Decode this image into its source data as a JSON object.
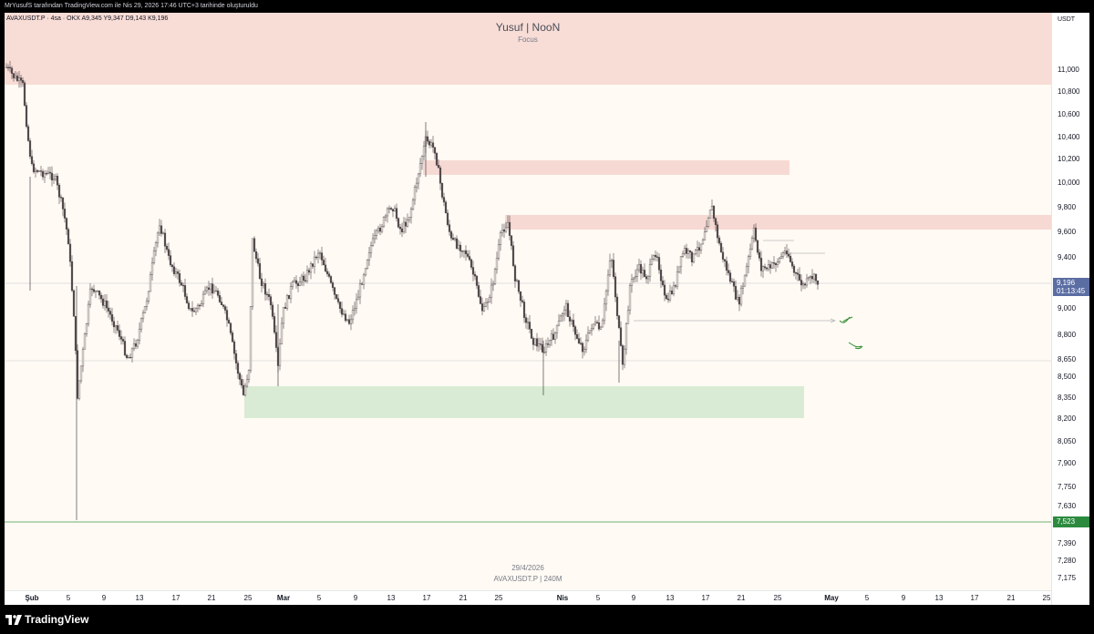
{
  "header": {
    "attribution": "MrYusufS tarafından TradingView.com ile Nis 29, 2026 17:46 UTC+3 tarihinde oluşturuldu"
  },
  "legend": {
    "symbol_line": "AVAXUSDT.P · 4sa · OKX  A9,345  Y9,347  D9,143  K9,196"
  },
  "watermark": {
    "title": "Yusuf | NooN",
    "subtitle": "Focus",
    "date": "29/4/2026",
    "symbol": "AVAXUSDT.P | 240M"
  },
  "price_axis": {
    "currency": "USDT",
    "ticks": [
      "11,000",
      "10,800",
      "10,600",
      "10,400",
      "10,200",
      "10,000",
      "9,800",
      "9,600",
      "9,400",
      "9,200",
      "9,000",
      "8,800",
      "8,650",
      "8,500",
      "8,350",
      "8,200",
      "8,050",
      "7,900",
      "7,750",
      "7,630",
      "7,390",
      "7,280",
      "7,175"
    ],
    "current_price": "9,196",
    "countdown": "01:13:45",
    "level_price": "7,523"
  },
  "time_axis": {
    "ticks": [
      "Şub",
      "5",
      "9",
      "13",
      "17",
      "21",
      "25",
      "Mar",
      "5",
      "9",
      "13",
      "17",
      "21",
      "25",
      "Nis",
      "5",
      "9",
      "13",
      "17",
      "21",
      "25",
      "May",
      "5",
      "9",
      "13",
      "17",
      "21",
      "25"
    ],
    "bold_ticks": [
      "Şub",
      "Mar",
      "Nis",
      "May"
    ]
  },
  "colors": {
    "background": "#fffaf4",
    "supply_zone": "#f8d9d3",
    "demand_zone": "#d9ebd4",
    "candle": "#4d4447",
    "current_price_tag": "#5b6ea3",
    "support_level": "#2b8a3e",
    "annotation": "#2f8f2f"
  },
  "brand": {
    "name": "TradingView",
    "icon": "tradingview-logo-icon"
  }
}
